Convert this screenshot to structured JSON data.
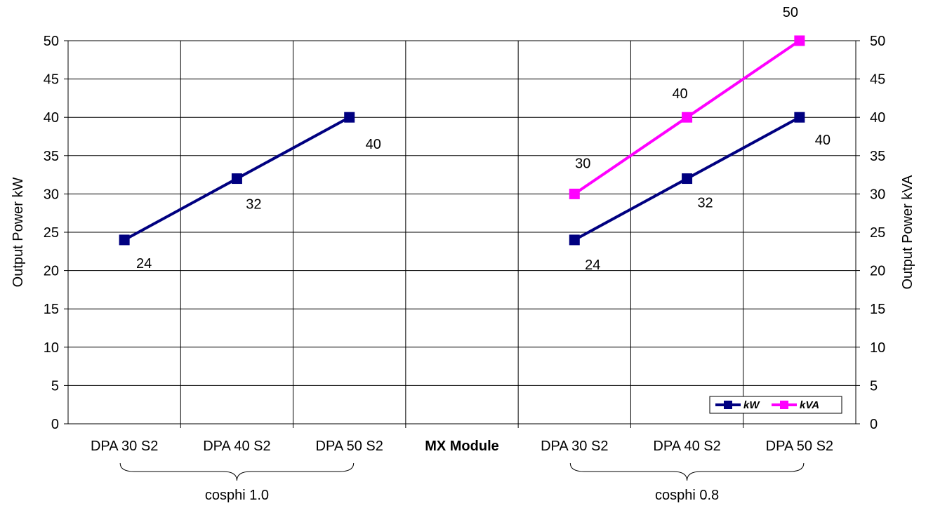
{
  "chart_data": {
    "type": "line",
    "categories": [
      "DPA 30 S2",
      "DPA 40 S2",
      "DPA 50 S2",
      "MX Module",
      "DPA 30 S2",
      "DPA 40 S2",
      "DPA 50 S2"
    ],
    "bold_categories": [
      3
    ],
    "groups": [
      {
        "label": "cosphi 1.0",
        "from": 0,
        "to": 2
      },
      {
        "label": "cosphi 0.8",
        "from": 4,
        "to": 6
      }
    ],
    "ylabel": "Output Power kW",
    "y2label": "Output Power kVA",
    "ylim": [
      0,
      50
    ],
    "y_ticks": [
      0,
      5,
      10,
      15,
      20,
      25,
      30,
      35,
      40,
      45,
      50
    ],
    "grid": true,
    "legend_position": "bottom-right",
    "series": [
      {
        "name": "kW",
        "color": "#000080",
        "values": [
          24,
          32,
          40,
          null,
          24,
          32,
          40
        ]
      },
      {
        "name": "kVA",
        "color": "#FF00FF",
        "values": [
          null,
          null,
          null,
          null,
          30,
          40,
          50
        ]
      }
    ]
  }
}
